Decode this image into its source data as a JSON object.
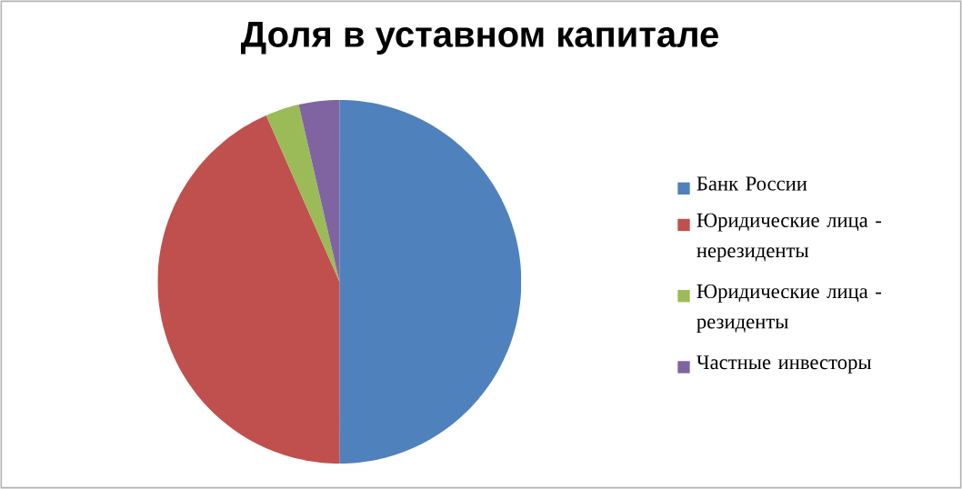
{
  "chart_data": {
    "type": "pie",
    "title": "Доля в уставном капитале",
    "categories": [
      "Банк России",
      "Юридические лица - нерезиденты",
      "Юридические лица - резиденты",
      "Частные инвесторы"
    ],
    "values": [
      50,
      43.4,
      3.0,
      3.6
    ],
    "colors": [
      "#4f81bd",
      "#c0504d",
      "#9bbb59",
      "#8064a2"
    ],
    "legend": "right"
  }
}
